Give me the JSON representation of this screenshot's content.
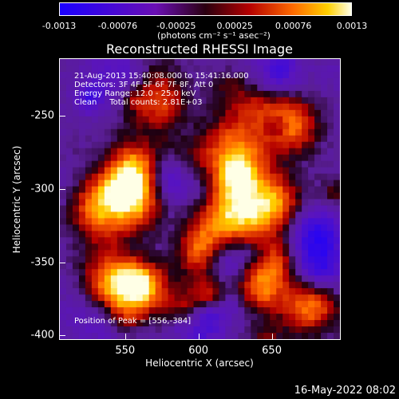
{
  "colorbar": {
    "tick_labels": [
      "-0.0013",
      "-0.00076",
      "-0.00025",
      "0.00025",
      "0.00076",
      "0.0013"
    ],
    "unit": "(photons cm⁻² s⁻¹ asec⁻²)",
    "range": [
      -0.0013,
      0.0013
    ]
  },
  "chart_data": {
    "type": "heatmap",
    "title": "Reconstructed RHESSI Image",
    "xlabel": "Heliocentric X (arcsec)",
    "ylabel": "Heliocentric Y (arcsec)",
    "xlim": [
      505,
      697
    ],
    "ylim": [
      -403,
      -211
    ],
    "x_ticks": [
      550,
      600,
      650
    ],
    "y_ticks": [
      -250,
      -300,
      -350,
      -400
    ],
    "peak": [
      556,
      -384
    ],
    "colormap": "blue-purple-red-yellow-white",
    "annotations": {
      "time": "21-Aug-2013 15:40:08.000 to 15:41:16.000",
      "detectors": "Detectors: 3F 4F 5F 6F 7F 8F, Att 0",
      "energy": "Energy Range: 12.0 - 25.0 keV",
      "method": "Clean     Total counts: 2.81E+03",
      "peak_text": "Position of Peak = [556,-384]"
    }
  },
  "datestamp": "16-May-2022 08:02"
}
